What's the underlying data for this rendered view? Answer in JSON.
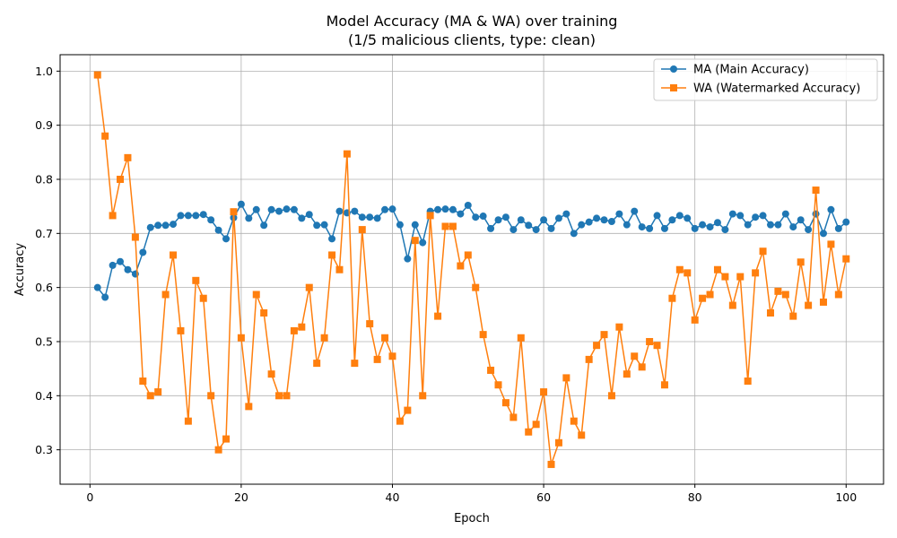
{
  "chart_data": {
    "type": "line",
    "title_line1": "Model Accuracy (MA & WA) over training",
    "title_line2": "(1/5 malicious clients, type: clean)",
    "xlabel": "Epoch",
    "ylabel": "Accuracy",
    "xlim": [
      -3.95,
      104.95
    ],
    "ylim": [
      0.2364,
      1.0304
    ],
    "xticks": [
      0,
      20,
      40,
      60,
      80,
      100
    ],
    "xtick_labels": [
      "0",
      "20",
      "40",
      "60",
      "80",
      "100"
    ],
    "yticks": [
      0.3,
      0.4,
      0.5,
      0.6,
      0.7,
      0.8,
      0.9,
      1.0
    ],
    "ytick_labels": [
      "0.3",
      "0.4",
      "0.5",
      "0.6",
      "0.7",
      "0.8",
      "0.9",
      "1.0"
    ],
    "grid": true,
    "legend_position": "top-right",
    "x": [
      1,
      2,
      3,
      4,
      5,
      6,
      7,
      8,
      9,
      10,
      11,
      12,
      13,
      14,
      15,
      16,
      17,
      18,
      19,
      20,
      21,
      22,
      23,
      24,
      25,
      26,
      27,
      28,
      29,
      30,
      31,
      32,
      33,
      34,
      35,
      36,
      37,
      38,
      39,
      40,
      41,
      42,
      43,
      44,
      45,
      46,
      47,
      48,
      49,
      50,
      51,
      52,
      53,
      54,
      55,
      56,
      57,
      58,
      59,
      60,
      61,
      62,
      63,
      64,
      65,
      66,
      67,
      68,
      69,
      70,
      71,
      72,
      73,
      74,
      75,
      76,
      77,
      78,
      79,
      80,
      81,
      82,
      83,
      84,
      85,
      86,
      87,
      88,
      89,
      90,
      91,
      92,
      93,
      94,
      95,
      96,
      97,
      98,
      99,
      100
    ],
    "series": [
      {
        "name": "MA (Main Accuracy)",
        "color": "#1f77b4",
        "marker": "circle",
        "values": [
          0.6,
          0.582,
          0.641,
          0.648,
          0.633,
          0.625,
          0.665,
          0.711,
          0.715,
          0.715,
          0.717,
          0.733,
          0.733,
          0.733,
          0.735,
          0.725,
          0.706,
          0.69,
          0.729,
          0.754,
          0.728,
          0.744,
          0.715,
          0.744,
          0.741,
          0.745,
          0.744,
          0.728,
          0.735,
          0.715,
          0.716,
          0.69,
          0.741,
          0.738,
          0.741,
          0.73,
          0.73,
          0.728,
          0.744,
          0.745,
          0.716,
          0.653,
          0.716,
          0.683,
          0.741,
          0.744,
          0.745,
          0.744,
          0.736,
          0.752,
          0.73,
          0.732,
          0.709,
          0.725,
          0.73,
          0.707,
          0.725,
          0.715,
          0.707,
          0.725,
          0.709,
          0.728,
          0.736,
          0.7,
          0.716,
          0.721,
          0.728,
          0.725,
          0.722,
          0.736,
          0.716,
          0.741,
          0.712,
          0.709,
          0.733,
          0.709,
          0.725,
          0.733,
          0.728,
          0.709,
          0.716,
          0.712,
          0.72,
          0.707,
          0.736,
          0.733,
          0.716,
          0.73,
          0.733,
          0.716,
          0.716,
          0.736,
          0.712,
          0.725,
          0.707,
          0.736,
          0.7,
          0.744,
          0.709,
          0.721
        ]
      },
      {
        "name": "WA (Watermarked Accuracy)",
        "color": "#ff7f0e",
        "marker": "square",
        "values": [
          0.993,
          0.88,
          0.733,
          0.8,
          0.84,
          0.693,
          0.427,
          0.4,
          0.407,
          0.587,
          0.66,
          0.52,
          0.353,
          0.613,
          0.58,
          0.4,
          0.3,
          0.32,
          0.74,
          0.507,
          0.38,
          0.587,
          0.553,
          0.44,
          0.4,
          0.4,
          0.52,
          0.527,
          0.6,
          0.46,
          0.507,
          0.66,
          0.633,
          0.847,
          0.46,
          0.707,
          0.533,
          0.467,
          0.507,
          0.473,
          0.353,
          0.373,
          0.687,
          0.4,
          0.733,
          0.547,
          0.713,
          0.713,
          0.64,
          0.66,
          0.6,
          0.513,
          0.447,
          0.42,
          0.387,
          0.36,
          0.507,
          0.333,
          0.347,
          0.407,
          0.273,
          0.313,
          0.433,
          0.353,
          0.327,
          0.467,
          0.493,
          0.513,
          0.4,
          0.527,
          0.44,
          0.473,
          0.453,
          0.5,
          0.493,
          0.42,
          0.58,
          0.633,
          0.627,
          0.54,
          0.58,
          0.587,
          0.633,
          0.62,
          0.567,
          0.62,
          0.427,
          0.627,
          0.667,
          0.553,
          0.593,
          0.587,
          0.547,
          0.647,
          0.567,
          0.78,
          0.573,
          0.68,
          0.587,
          0.653
        ]
      }
    ]
  }
}
